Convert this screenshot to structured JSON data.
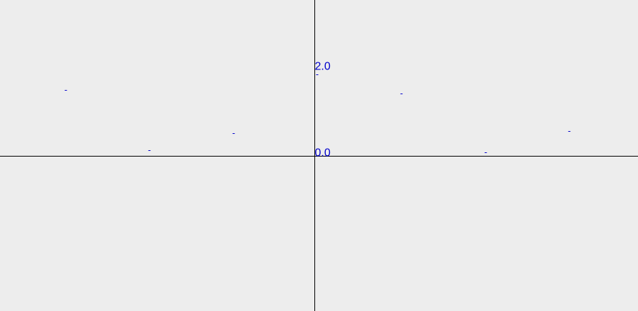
{
  "chart_data": {
    "type": "scatter",
    "title": "",
    "xlabel": "",
    "ylabel": "",
    "grid": false,
    "legend": "none",
    "colors": {
      "background": "#ededed",
      "axis": "#000000",
      "marks": "#0000cc",
      "labels": "#0000cc"
    },
    "x_range": [
      -3.7,
      3.8
    ],
    "ylim": [
      -3.6,
      3.6
    ],
    "y_ticks": [
      {
        "value": 0.0,
        "label": "0.0"
      },
      {
        "value": 2.0,
        "label": "2.0"
      }
    ],
    "series": [
      {
        "points": [
          {
            "x": -2.93,
            "y": 1.52
          },
          {
            "x": -1.94,
            "y": 0.13
          },
          {
            "x": -0.95,
            "y": 0.51
          },
          {
            "x": 0.03,
            "y": 1.87
          },
          {
            "x": 1.02,
            "y": 1.44
          },
          {
            "x": 2.01,
            "y": 0.08
          },
          {
            "x": 2.99,
            "y": 0.56
          }
        ]
      }
    ]
  }
}
